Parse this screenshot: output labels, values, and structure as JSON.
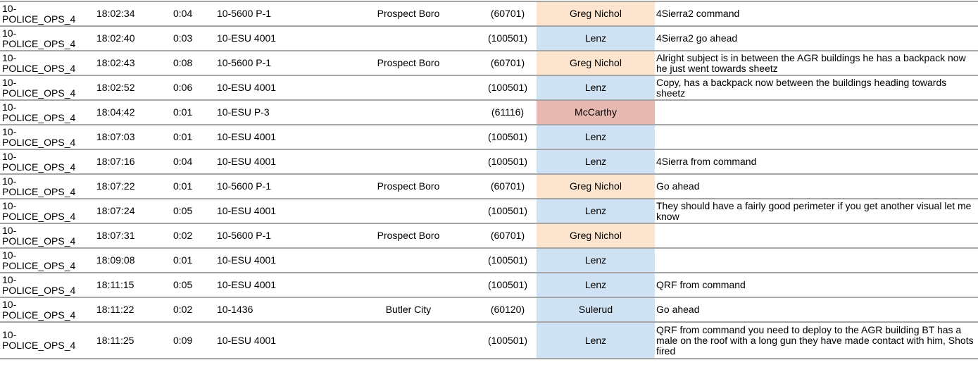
{
  "colors": {
    "greg": "#fce4cf",
    "lenz": "#cfe2f3",
    "mccarthy": "#e6b8b0"
  },
  "rows": [
    {
      "channel": "10-\nPOLICE_OPS_4",
      "time": "18:02:34",
      "duration": "0:04",
      "unit": "10-5600 P-1",
      "agency": "Prospect Boro",
      "id": "(60701)",
      "name": "Greg Nichol",
      "color": "#fce4cf",
      "text": "4Sierra2 command"
    },
    {
      "channel": "10-\nPOLICE_OPS_4",
      "time": "18:02:40",
      "duration": "0:03",
      "unit": "10-ESU 4001",
      "agency": "",
      "id": "(100501)",
      "name": "Lenz",
      "color": "#cfe2f3",
      "text": "4Sierra2 go ahead"
    },
    {
      "channel": "10-\nPOLICE_OPS_4",
      "time": "18:02:43",
      "duration": "0:08",
      "unit": "10-5600 P-1",
      "agency": "Prospect Boro",
      "id": "(60701)",
      "name": "Greg Nichol",
      "color": "#fce4cf",
      "text": "Alright subject is in between the AGR buildings he has a backpack now he just went towards sheetz"
    },
    {
      "channel": "10-\nPOLICE_OPS_4",
      "time": "18:02:52",
      "duration": "0:06",
      "unit": "10-ESU 4001",
      "agency": "",
      "id": "(100501)",
      "name": "Lenz",
      "color": "#cfe2f3",
      "text": "Copy, has a backpack now between the buildings heading towards sheetz"
    },
    {
      "channel": "10-\nPOLICE_OPS_4",
      "time": "18:04:42",
      "duration": "0:01",
      "unit": "10-ESU P-3",
      "agency": "",
      "id": "(61116)",
      "name": "McCarthy",
      "color": "#e6b8b0",
      "text": ""
    },
    {
      "channel": "10-\nPOLICE_OPS_4",
      "time": "18:07:03",
      "duration": "0:01",
      "unit": "10-ESU 4001",
      "agency": "",
      "id": "(100501)",
      "name": "Lenz",
      "color": "#cfe2f3",
      "text": ""
    },
    {
      "channel": "10-\nPOLICE_OPS_4",
      "time": "18:07:16",
      "duration": "0:04",
      "unit": "10-ESU 4001",
      "agency": "",
      "id": "(100501)",
      "name": "Lenz",
      "color": "#cfe2f3",
      "text": "4Sierra from command"
    },
    {
      "channel": "10-\nPOLICE_OPS_4",
      "time": "18:07:22",
      "duration": "0:01",
      "unit": "10-5600 P-1",
      "agency": "Prospect Boro",
      "id": "(60701)",
      "name": "Greg Nichol",
      "color": "#fce4cf",
      "text": "Go ahead"
    },
    {
      "channel": "10-\nPOLICE_OPS_4",
      "time": "18:07:24",
      "duration": "0:05",
      "unit": "10-ESU 4001",
      "agency": "",
      "id": "(100501)",
      "name": "Lenz",
      "color": "#cfe2f3",
      "text": "They should have a fairly good perimeter if you get another visual let me know"
    },
    {
      "channel": "10-\nPOLICE_OPS_4",
      "time": "18:07:31",
      "duration": "0:02",
      "unit": "10-5600 P-1",
      "agency": "Prospect Boro",
      "id": "(60701)",
      "name": "Greg Nichol",
      "color": "#fce4cf",
      "text": ""
    },
    {
      "channel": "10-\nPOLICE_OPS_4",
      "time": "18:09:08",
      "duration": "0:01",
      "unit": "10-ESU 4001",
      "agency": "",
      "id": "(100501)",
      "name": "Lenz",
      "color": "#cfe2f3",
      "text": ""
    },
    {
      "channel": "10-\nPOLICE_OPS_4",
      "time": "18:11:15",
      "duration": "0:05",
      "unit": "10-ESU 4001",
      "agency": "",
      "id": "(100501)",
      "name": "Lenz",
      "color": "#cfe2f3",
      "text": "QRF from command"
    },
    {
      "channel": "10-\nPOLICE_OPS_4",
      "time": "18:11:22",
      "duration": "0:02",
      "unit": "10-1436",
      "agency": "Butler City",
      "id": "(60120)",
      "name": "Sulerud",
      "color": "#cfe2f3",
      "text": "Go ahead"
    },
    {
      "channel": "10-\nPOLICE_OPS_4",
      "time": "18:11:25",
      "duration": "0:09",
      "unit": "10-ESU 4001",
      "agency": "",
      "id": "(100501)",
      "name": "Lenz",
      "color": "#cfe2f3",
      "text": "QRF from command you need to deploy to the AGR building BT has a male on the roof with a long gun they have made contact with him, Shots fired"
    }
  ]
}
